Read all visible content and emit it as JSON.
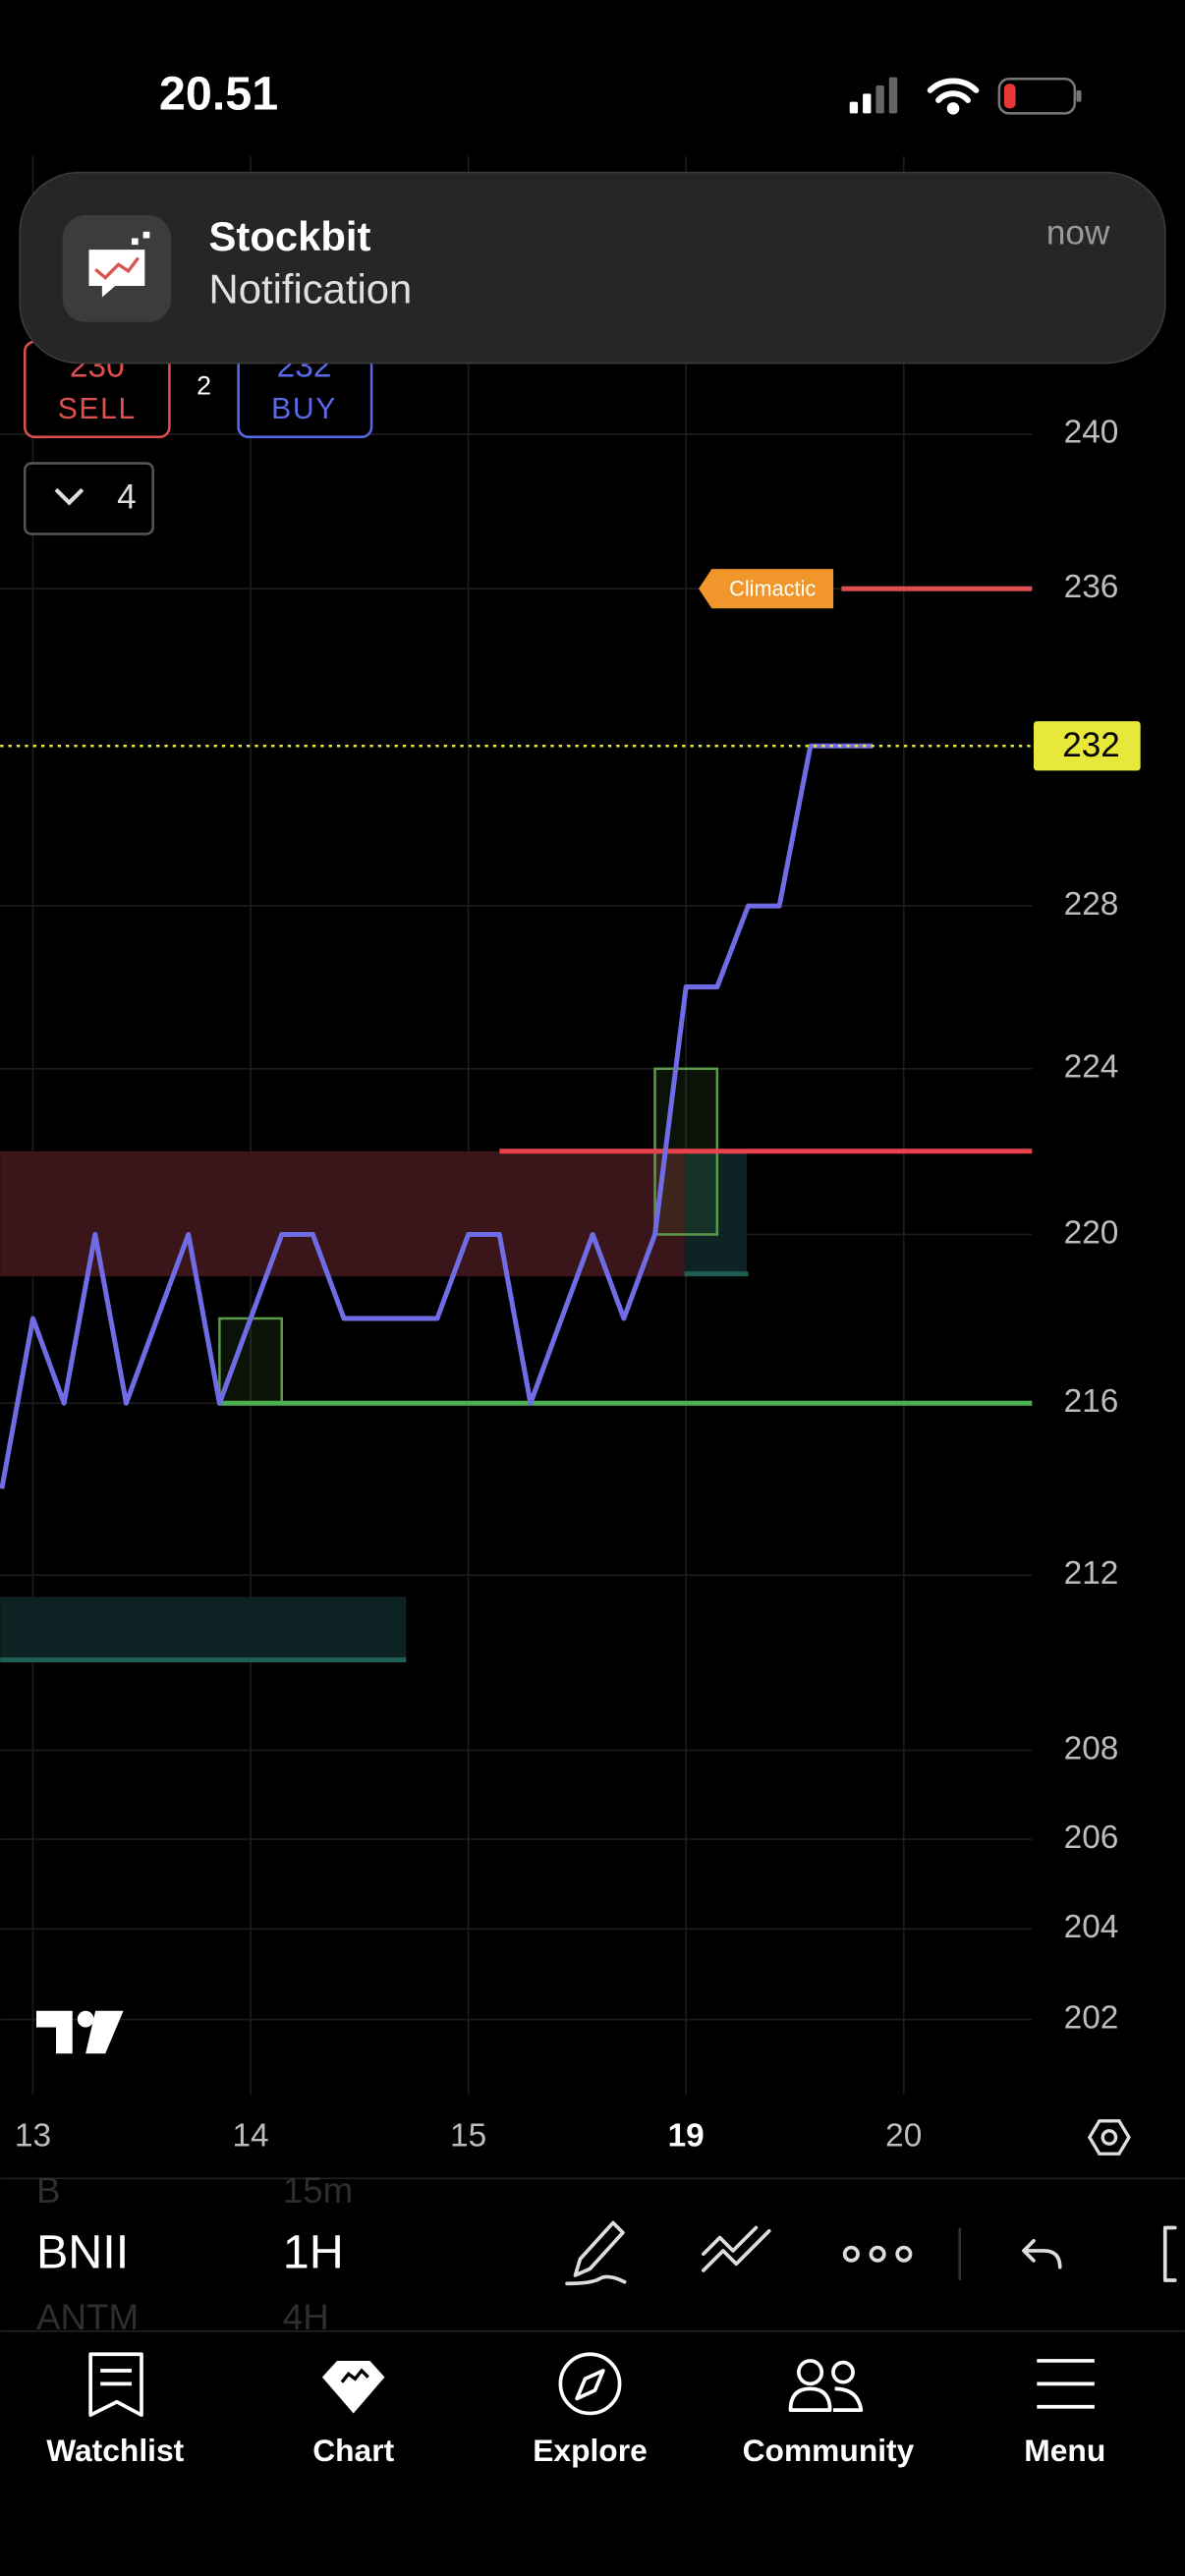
{
  "status_bar": {
    "time": "20.51"
  },
  "notification": {
    "app": "Stockbit",
    "text": "Notification",
    "time": "now"
  },
  "order_buttons": {
    "sell_price": 230,
    "sell_label": "SELL",
    "spread": 2,
    "buy_price": 232,
    "buy_label": "BUY"
  },
  "collapse_count": 4,
  "chart_data": {
    "type": "line",
    "categories": [
      null,
      "13",
      null,
      null,
      null,
      null,
      null,
      null,
      "14",
      null,
      null,
      null,
      null,
      null,
      null,
      "15",
      null,
      null,
      null,
      null,
      null,
      null,
      "19",
      null,
      null,
      null,
      null,
      null,
      null,
      "20",
      null,
      null,
      null,
      null
    ],
    "highlight": 22,
    "series": [
      {
        "name": "BNII",
        "color": "#6f6ce6",
        "values": [
          214,
          218,
          216,
          220,
          216,
          218,
          220,
          216,
          218,
          220,
          220,
          218,
          218,
          218,
          218,
          220,
          220,
          216,
          218,
          220,
          218,
          220,
          226,
          226,
          228,
          228,
          232,
          232,
          232,
          null,
          null,
          null,
          null,
          null
        ]
      }
    ],
    "log_scale": true,
    "ylim": [
      200,
      246
    ],
    "yticks": [
      240,
      236,
      228,
      224,
      220,
      216,
      212,
      208,
      206,
      204,
      202
    ],
    "grid": true,
    "zones": [
      {
        "low": 219,
        "high": 222,
        "from": 0,
        "to": 22,
        "color": "#3a1519"
      },
      {
        "low": 219,
        "high": 222,
        "from": 22,
        "to": 24,
        "color": "#0e2424",
        "edge": "#1f5e50"
      },
      {
        "low": 210,
        "high": 211.5,
        "from": 0,
        "to": 13,
        "color": "#0d2222",
        "edge": "#1f5e50"
      }
    ],
    "boxes": [
      {
        "low": 216,
        "high": 218,
        "from": 7,
        "to": 9,
        "color": "#5a9a4a"
      },
      {
        "low": 220,
        "high": 224,
        "from": 21,
        "to": 23,
        "color": "#5a9a4a"
      }
    ],
    "levels": [
      {
        "name": "Climactic",
        "value": 236,
        "from": 27,
        "color": "#e04f4f",
        "label_color": "#f0962a"
      },
      {
        "value": 222,
        "from": 16,
        "color": "#e8424c"
      },
      {
        "value": 216,
        "from": 7,
        "color": "#4caf50"
      }
    ],
    "last_price": {
      "value": 232,
      "color": "#e8e83a"
    }
  },
  "toolbar": {
    "symbol": "BNII",
    "interval": "1H",
    "symbol_above": "B",
    "interval_above": "15m",
    "symbol_below": "ANTM",
    "interval_below": "4H"
  },
  "nav": [
    {
      "label": "Watchlist"
    },
    {
      "label": "Chart"
    },
    {
      "label": "Explore"
    },
    {
      "label": "Community"
    },
    {
      "label": "Menu"
    }
  ]
}
